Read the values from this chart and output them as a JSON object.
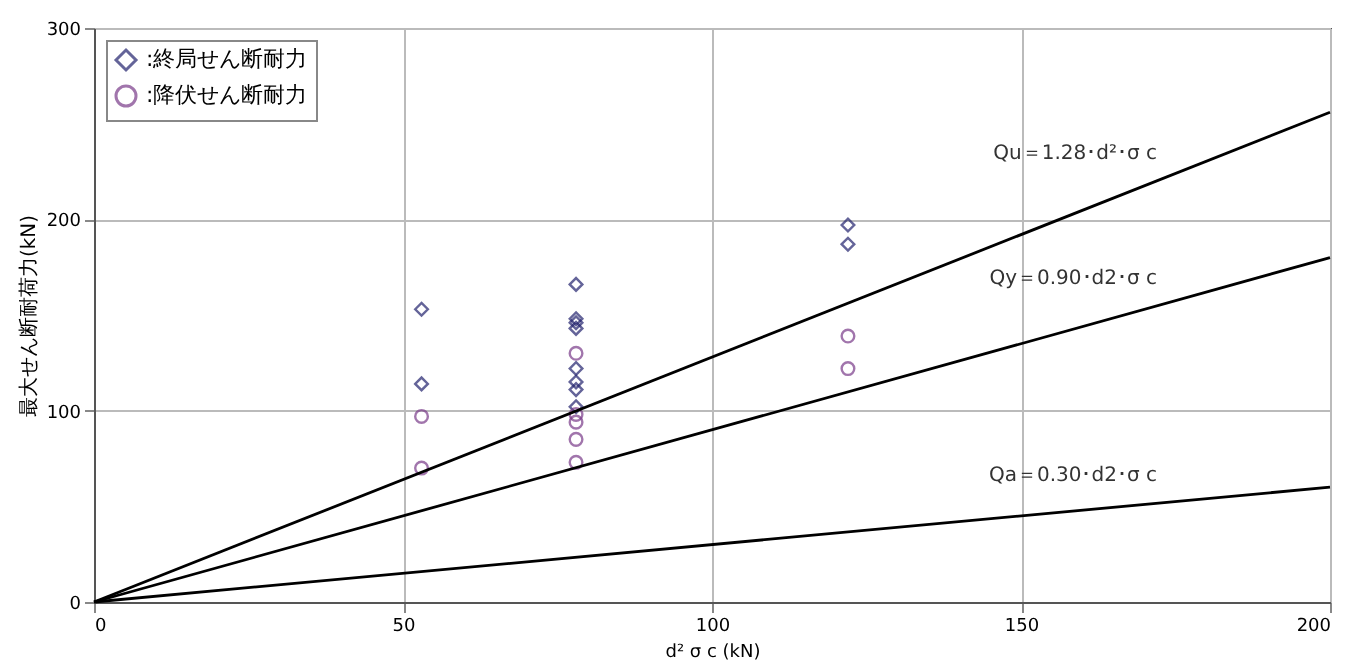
{
  "chart_data": {
    "type": "scatter",
    "xlabel": "d² σ c (kN)",
    "ylabel": "最大せん断耐荷力(kN)",
    "xlim": [
      0,
      200
    ],
    "ylim": [
      0,
      300
    ],
    "xticks": [
      0,
      50,
      100,
      150,
      200
    ],
    "yticks": [
      0,
      100,
      200,
      300
    ],
    "grid": true,
    "legend": "top left",
    "series": [
      {
        "name": ":終局せん断耐力",
        "marker": "diamond",
        "color": "#23236e",
        "x": [
          53,
          53,
          78,
          78,
          78,
          78,
          78,
          78,
          78,
          78,
          122,
          122
        ],
        "values": [
          153,
          114,
          166,
          148,
          146,
          143,
          122,
          115,
          111,
          102,
          197,
          187
        ]
      },
      {
        "name": ":降伏せん断耐力",
        "marker": "circle",
        "color": "#7a3c8a",
        "x": [
          53,
          53,
          78,
          78,
          78,
          78,
          78,
          122,
          122
        ],
        "values": [
          97,
          70,
          130,
          98,
          94,
          85,
          73,
          139,
          122
        ]
      },
      {
        "name": "Qu＝1.28･d²･σ c",
        "type": "line",
        "line_style": "solid",
        "color": "#000000",
        "x": [
          0,
          200
        ],
        "values": [
          0,
          256
        ]
      },
      {
        "name": "Qy＝0.90･d2･σ c",
        "type": "line",
        "line_style": "solid",
        "color": "#000000",
        "x": [
          0,
          200
        ],
        "values": [
          0,
          180
        ]
      },
      {
        "name": "Qa＝0.30･d2･σ c",
        "type": "line",
        "line_style": "solid",
        "color": "#000000",
        "x": [
          0,
          200
        ],
        "values": [
          0,
          60
        ]
      }
    ]
  }
}
